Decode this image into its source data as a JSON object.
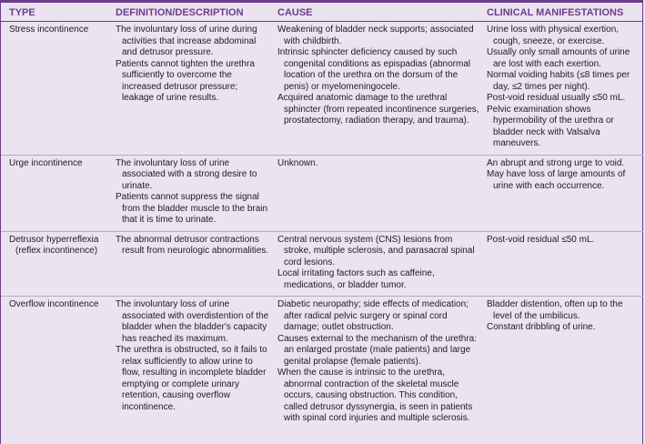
{
  "headers": [
    "TYPE",
    "DEFINITION/DESCRIPTION",
    "CAUSE",
    "CLINICAL MANIFESTATIONS"
  ],
  "rows": [
    {
      "type": "Stress incontinence",
      "definition": [
        "The involuntary loss of urine during activities that increase abdominal and detrusor pressure.",
        "Patients cannot tighten the urethra sufficiently to overcome the increased detrusor pressure; leakage of urine results."
      ],
      "cause": [
        "Weakening of bladder neck supports; associated with childbirth.",
        "Intrinsic sphincter deficiency caused by such congenital conditions as epispadias (abnormal location of the urethra on the dorsum of the penis) or myelomeningocele.",
        "Acquired anatomic damage to the urethral sphincter (from repeated incontinence surgeries, prostatectomy, radiation therapy, and trauma)."
      ],
      "manifestations": [
        "Urine loss with physical exertion, cough, sneeze, or exercise.",
        "Usually only small amounts of urine are lost with each exertion.",
        "Normal voiding habits (≤8 times per day, ≤2 times per night).",
        "Post-void residual usually ≤50 mL.",
        "Pelvic examination shows hypermobility of the urethra or bladder neck with Valsalva maneuvers."
      ]
    },
    {
      "type": "Urge incontinence",
      "definition": [
        "The involuntary loss of urine associated with a strong desire to urinate.",
        "Patients cannot suppress the signal from the bladder muscle to the brain that it is time to urinate."
      ],
      "cause": [
        "Unknown."
      ],
      "manifestations": [
        "An abrupt and strong urge to void.",
        "May have loss of large amounts of urine with each occurrence."
      ]
    },
    {
      "type": "Detrusor hyperreflexia (reflex incontinence)",
      "definition": [
        "The abnormal detrusor contractions result from neurologic abnormalities."
      ],
      "cause": [
        "Central nervous system (CNS) lesions from stroke, multiple sclerosis, and parasacral spinal cord lesions.",
        "Local irritating factors such as caffeine, medications, or bladder tumor."
      ],
      "manifestations": [
        "Post-void residual ≤50 mL."
      ]
    },
    {
      "type": "Overflow incontinence",
      "definition": [
        "The involuntary loss of urine associated with overdistention of the bladder when the bladder's capacity has reached its maximum.",
        "The urethra is obstructed, so it fails to relax sufficiently to allow urine to flow, resulting in incomplete bladder emptying or complete urinary retention, causing overflow incontinence."
      ],
      "cause": [
        "Diabetic neuropathy; side effects of medication; after radical pelvic surgery or spinal cord damage; outlet obstruction.",
        "Causes external to the mechanism of the urethra: an enlarged prostate (male patients) and large genital prolapse (female patients).",
        "When the cause is intrinsic to the urethra, abnormal contraction of the skeletal muscle occurs, causing obstruction. This condition, called detrusor dyssynergia, is seen in patients with spinal cord injuries and multiple sclerosis."
      ],
      "manifestations": [
        "Bladder distention, often up to the level of the umbilicus.",
        "Constant dribbling of urine."
      ]
    }
  ],
  "colors": {
    "accent": "#6d3d8b",
    "background": "#ece3f1"
  }
}
